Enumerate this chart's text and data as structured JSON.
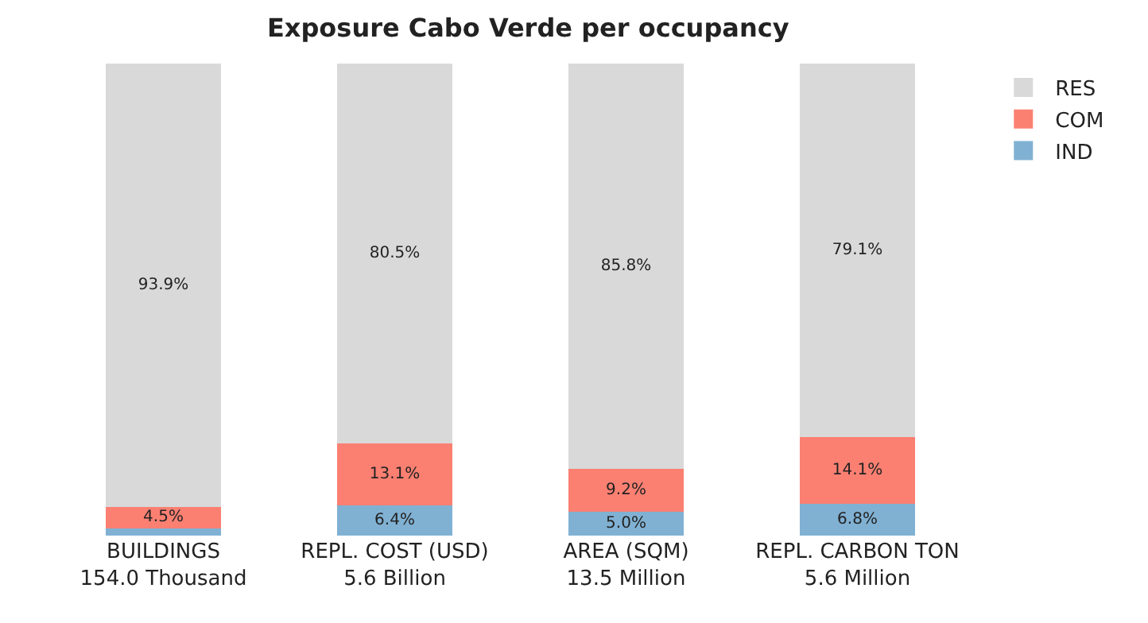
{
  "chart_data": {
    "type": "bar",
    "title": "Exposure Cabo Verde per occupancy",
    "stacked": true,
    "categories": [
      "BUILDINGS\n154.0 Thousand",
      "REPL. COST (USD)\n5.6 Billion",
      "AREA (SQM)\n13.5 Million",
      "REPL. CARBON TON\n5.6 Million"
    ],
    "series": [
      {
        "name": "IND",
        "color": "#80b1d3",
        "values": [
          1.6,
          6.4,
          5.0,
          6.8
        ],
        "value_labels": [
          null,
          "6.4%",
          "5.0%",
          "6.8%"
        ]
      },
      {
        "name": "COM",
        "color": "#fb8072",
        "values": [
          4.5,
          13.1,
          9.2,
          14.1
        ],
        "value_labels": [
          "4.5%",
          "13.1%",
          "9.2%",
          "14.1%"
        ]
      },
      {
        "name": "RES",
        "color": "#d9d9d9",
        "values": [
          93.9,
          80.5,
          85.8,
          79.1
        ],
        "value_labels": [
          "93.9%",
          "80.5%",
          "85.8%",
          "79.1%"
        ]
      }
    ],
    "ylim": [
      0,
      100
    ],
    "tick_labels": "x",
    "legend": "top right"
  }
}
